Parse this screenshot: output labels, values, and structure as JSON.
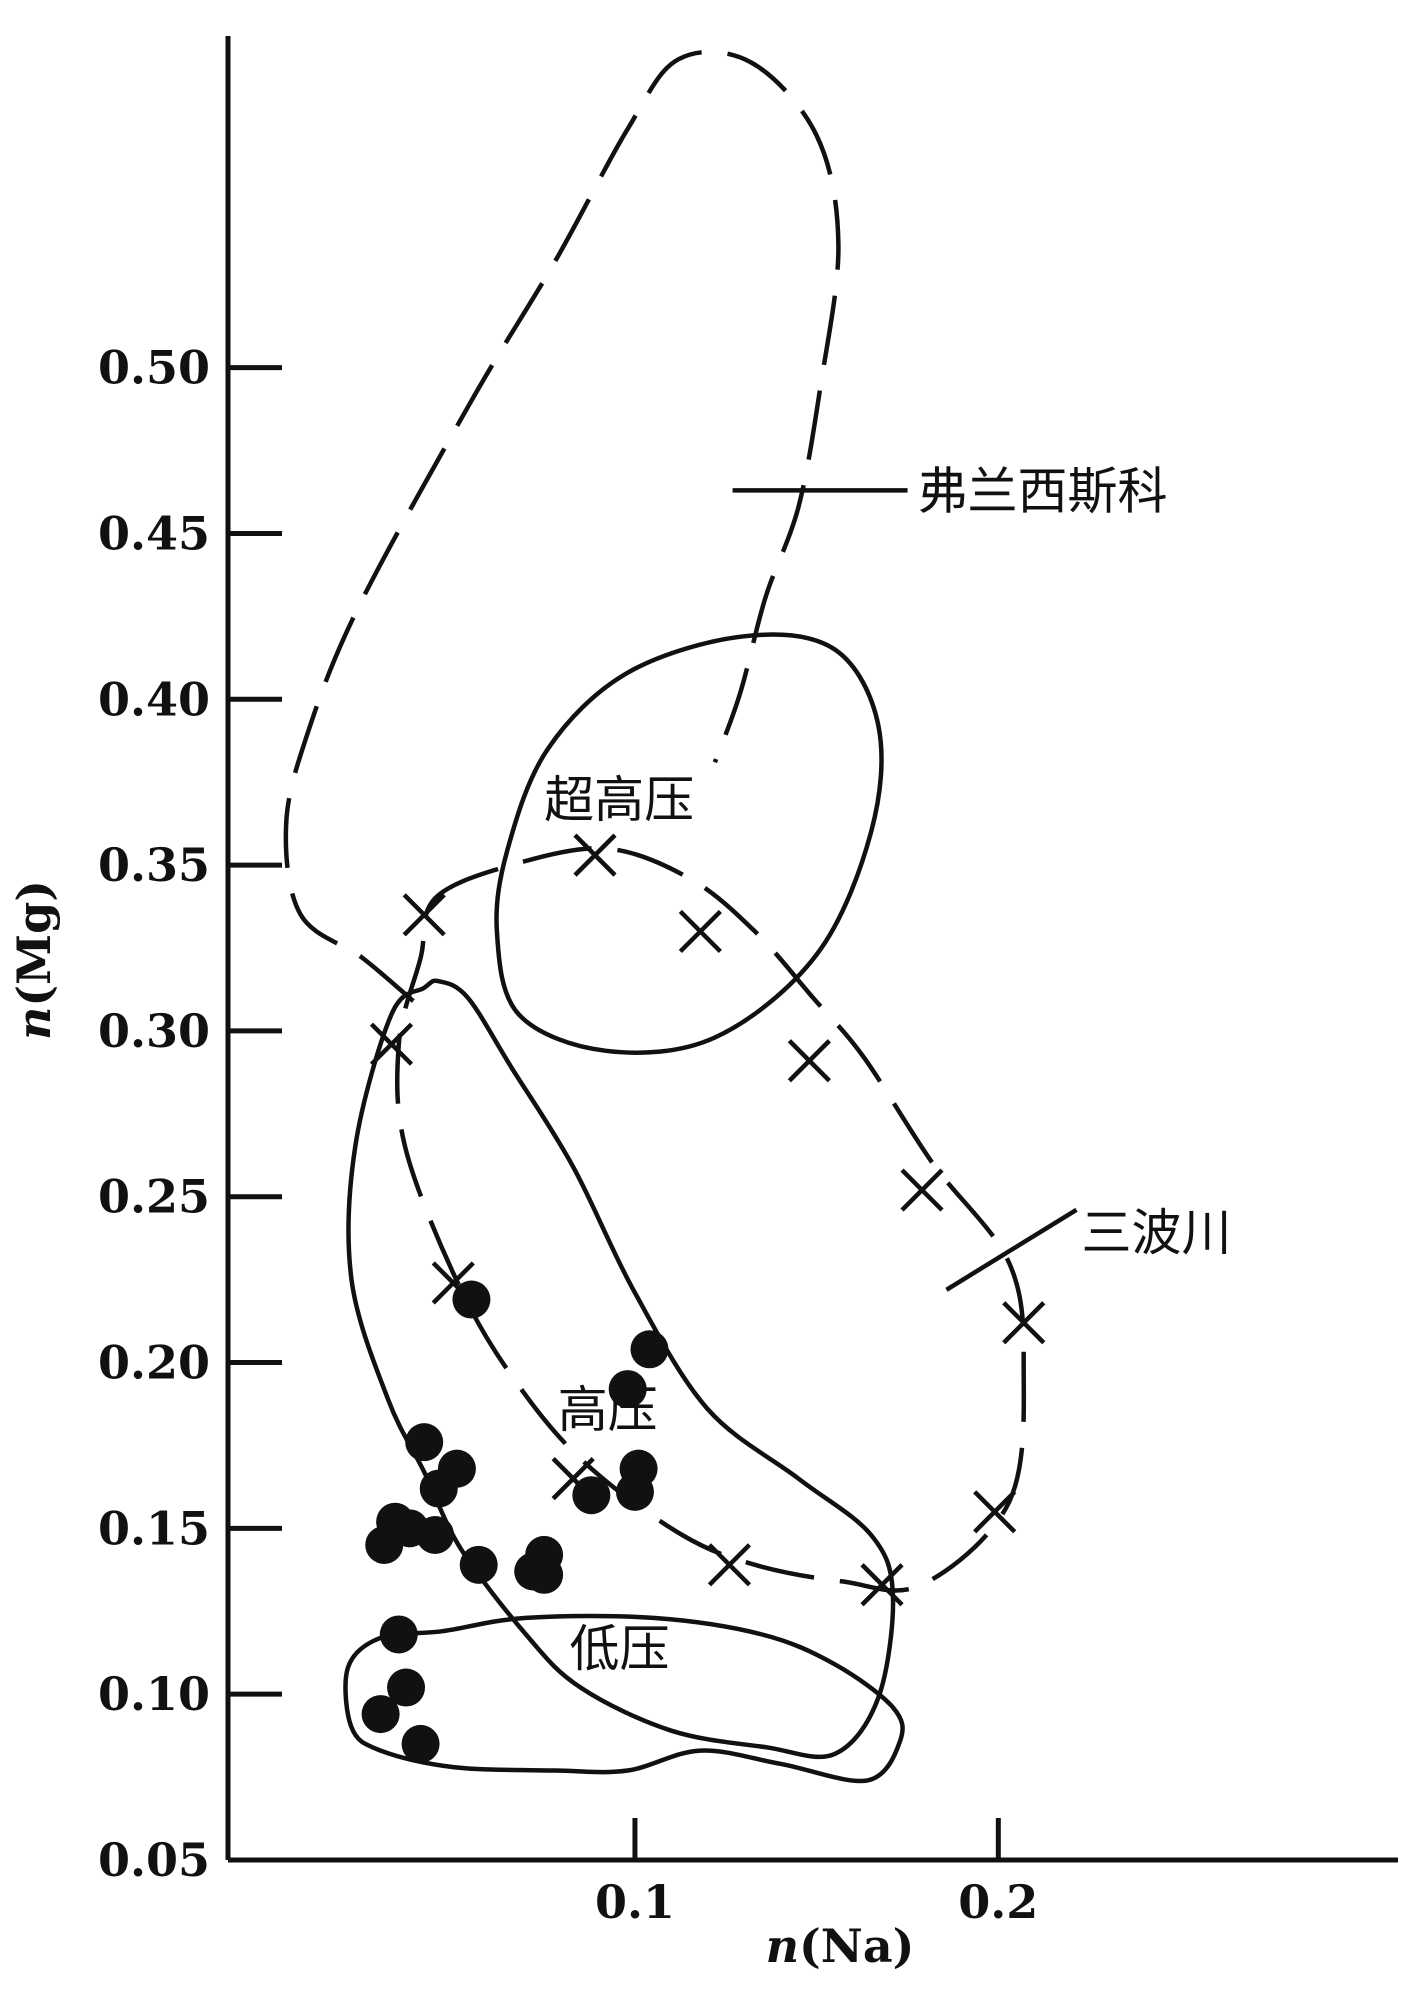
{
  "chart_data": {
    "type": "scatter",
    "title": "",
    "xlabel_var": "n",
    "xlabel_rest": "(Na)",
    "ylabel_var": "n",
    "ylabel_rest": "(Mg)",
    "xlim": [
      -0.012,
      0.31
    ],
    "ylim": [
      0.05,
      0.6
    ],
    "x_ticks": [
      {
        "value": 0.1,
        "label": "0.1"
      },
      {
        "value": 0.2,
        "label": "0.2"
      }
    ],
    "y_ticks": [
      {
        "value": 0.05,
        "label": "0.05"
      },
      {
        "value": 0.1,
        "label": "0.10"
      },
      {
        "value": 0.15,
        "label": "0.15"
      },
      {
        "value": 0.2,
        "label": "0.20"
      },
      {
        "value": 0.25,
        "label": "0.25"
      },
      {
        "value": 0.3,
        "label": "0.30"
      },
      {
        "value": 0.35,
        "label": "0.35"
      },
      {
        "value": 0.4,
        "label": "0.40"
      },
      {
        "value": 0.45,
        "label": "0.45"
      },
      {
        "value": 0.5,
        "label": "0.50"
      }
    ],
    "fields": [
      {
        "name": "弗兰西斯科",
        "style": "dashed",
        "points": [
          [
            0.039,
            0.309
          ],
          [
            0.025,
            0.322
          ],
          [
            0.008,
            0.335
          ],
          [
            0.004,
            0.362
          ],
          [
            0.01,
            0.39
          ],
          [
            0.024,
            0.428
          ],
          [
            0.055,
            0.49
          ],
          [
            0.078,
            0.532
          ],
          [
            0.098,
            0.572
          ],
          [
            0.112,
            0.593
          ],
          [
            0.132,
            0.592
          ],
          [
            0.15,
            0.57
          ],
          [
            0.156,
            0.537
          ],
          [
            0.151,
            0.494
          ],
          [
            0.145,
            0.458
          ],
          [
            0.136,
            0.431
          ],
          [
            0.129,
            0.402
          ],
          [
            0.122,
            0.381
          ]
        ],
        "label_anchor": [
          0.142,
          0.463
        ]
      },
      {
        "name": "超高压",
        "style": "solid",
        "points": [
          [
            0.068,
            0.305
          ],
          [
            0.092,
            0.294
          ],
          [
            0.122,
            0.298
          ],
          [
            0.15,
            0.323
          ],
          [
            0.165,
            0.36
          ],
          [
            0.167,
            0.392
          ],
          [
            0.155,
            0.415
          ],
          [
            0.13,
            0.419
          ],
          [
            0.098,
            0.408
          ],
          [
            0.076,
            0.385
          ],
          [
            0.065,
            0.355
          ],
          [
            0.062,
            0.33
          ],
          [
            0.068,
            0.305
          ]
        ],
        "label_anchor": [
          0.075,
          0.37
        ]
      },
      {
        "name": "三波川",
        "style": "dashed",
        "points": [
          [
            0.045,
            0.34
          ],
          [
            0.066,
            0.35
          ],
          [
            0.092,
            0.355
          ],
          [
            0.115,
            0.346
          ],
          [
            0.133,
            0.33
          ],
          [
            0.149,
            0.31
          ],
          [
            0.163,
            0.292
          ],
          [
            0.182,
            0.26
          ],
          [
            0.203,
            0.23
          ],
          [
            0.207,
            0.198
          ],
          [
            0.203,
            0.158
          ],
          [
            0.179,
            0.133
          ],
          [
            0.157,
            0.134
          ],
          [
            0.133,
            0.139
          ],
          [
            0.113,
            0.148
          ],
          [
            0.088,
            0.168
          ],
          [
            0.07,
            0.19
          ],
          [
            0.053,
            0.22
          ],
          [
            0.037,
            0.264
          ],
          [
            0.035,
            0.296
          ],
          [
            0.041,
            0.322
          ],
          [
            0.045,
            0.34
          ]
        ],
        "label_anchor": [
          0.205,
          0.234
        ]
      },
      {
        "name": "高压",
        "style": "solid",
        "points": [
          [
            0.042,
            0.313
          ],
          [
            0.033,
            0.305
          ],
          [
            0.023,
            0.265
          ],
          [
            0.022,
            0.225
          ],
          [
            0.032,
            0.189
          ],
          [
            0.042,
            0.167
          ],
          [
            0.052,
            0.144
          ],
          [
            0.07,
            0.118
          ],
          [
            0.085,
            0.102
          ],
          [
            0.11,
            0.089
          ],
          [
            0.136,
            0.084
          ],
          [
            0.155,
            0.082
          ],
          [
            0.167,
            0.099
          ],
          [
            0.171,
            0.13
          ],
          [
            0.165,
            0.148
          ],
          [
            0.145,
            0.165
          ],
          [
            0.12,
            0.186
          ],
          [
            0.1,
            0.221
          ],
          [
            0.083,
            0.259
          ],
          [
            0.066,
            0.289
          ],
          [
            0.054,
            0.31
          ],
          [
            0.046,
            0.315
          ],
          [
            0.042,
            0.313
          ]
        ],
        "label_anchor": [
          0.098,
          0.186
        ]
      },
      {
        "name": "低压",
        "style": "solid",
        "points": [
          [
            0.047,
            0.119
          ],
          [
            0.07,
            0.123
          ],
          [
            0.105,
            0.123
          ],
          [
            0.135,
            0.118
          ],
          [
            0.155,
            0.109
          ],
          [
            0.171,
            0.096
          ],
          [
            0.173,
            0.086
          ],
          [
            0.164,
            0.074
          ],
          [
            0.14,
            0.079
          ],
          [
            0.118,
            0.083
          ],
          [
            0.098,
            0.077
          ],
          [
            0.078,
            0.077
          ],
          [
            0.05,
            0.078
          ],
          [
            0.03,
            0.083
          ],
          [
            0.022,
            0.09
          ],
          [
            0.021,
            0.108
          ],
          [
            0.03,
            0.117
          ],
          [
            0.047,
            0.119
          ]
        ],
        "label_anchor": [
          0.082,
          0.114
        ]
      }
    ],
    "series": [
      {
        "marker": "dot",
        "points": [
          [
            0.055,
            0.219
          ],
          [
            0.104,
            0.204
          ],
          [
            0.098,
            0.192
          ],
          [
            0.042,
            0.176
          ],
          [
            0.051,
            0.168
          ],
          [
            0.046,
            0.162
          ],
          [
            0.101,
            0.168
          ],
          [
            0.1,
            0.161
          ],
          [
            0.088,
            0.16
          ],
          [
            0.034,
            0.152
          ],
          [
            0.038,
            0.15
          ],
          [
            0.031,
            0.145
          ],
          [
            0.045,
            0.148
          ],
          [
            0.057,
            0.139
          ],
          [
            0.075,
            0.142
          ],
          [
            0.072,
            0.137
          ],
          [
            0.075,
            0.136
          ],
          [
            0.035,
            0.118
          ],
          [
            0.037,
            0.102
          ],
          [
            0.03,
            0.094
          ],
          [
            0.041,
            0.085
          ]
        ]
      },
      {
        "marker": "cross",
        "points": [
          [
            0.042,
            0.335
          ],
          [
            0.089,
            0.353
          ],
          [
            0.118,
            0.33
          ],
          [
            0.148,
            0.291
          ],
          [
            0.179,
            0.252
          ],
          [
            0.207,
            0.212
          ],
          [
            0.199,
            0.155
          ],
          [
            0.168,
            0.133
          ],
          [
            0.126,
            0.139
          ],
          [
            0.083,
            0.165
          ],
          [
            0.05,
            0.224
          ],
          [
            0.033,
            0.296
          ]
        ]
      }
    ]
  }
}
